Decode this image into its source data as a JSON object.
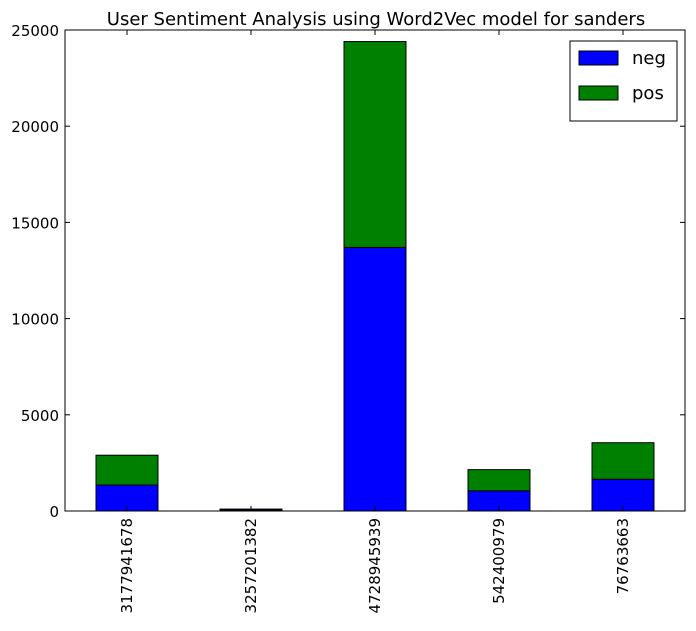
{
  "chart_data": {
    "type": "bar",
    "stacked": true,
    "title": "User Sentiment Analysis using Word2Vec model for sanders",
    "xlabel": "",
    "ylabel": "",
    "categories": [
      "3177941678",
      "3257201382",
      "4728945939",
      "542400979",
      "76763663"
    ],
    "series": [
      {
        "name": "neg",
        "color": "#0000ff",
        "values": [
          1350,
          60,
          13700,
          1050,
          1650
        ]
      },
      {
        "name": "pos",
        "color": "#008000",
        "values": [
          1550,
          40,
          10700,
          1100,
          1900
        ]
      }
    ],
    "ylim": [
      0,
      25000
    ],
    "yticks": [
      "0",
      "5000",
      "10000",
      "15000",
      "20000",
      "25000"
    ],
    "grid": false,
    "legend_position": "top-right"
  }
}
